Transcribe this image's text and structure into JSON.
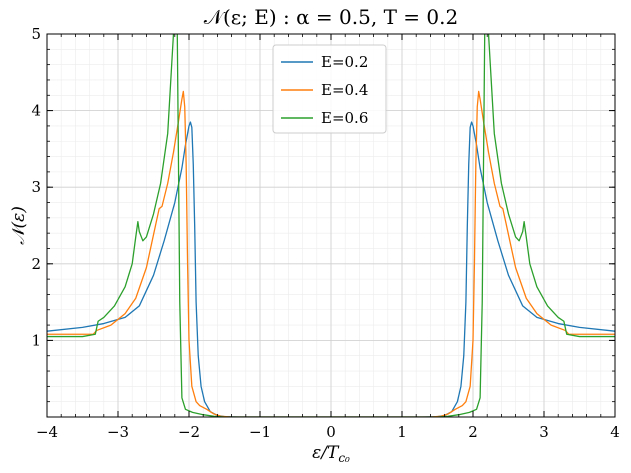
{
  "chart_data": {
    "type": "line",
    "title": "𝒩(ε; E) :  α = 0.5,  T = 0.2",
    "xlabel": "ε/T",
    "xlabel_sub": "c₀",
    "ylabel": "𝒩(ε)",
    "xlim": [
      -4,
      4
    ],
    "ylim": [
      0,
      5
    ],
    "xticks": [
      -4,
      -3,
      -2,
      -1,
      0,
      1,
      2,
      3,
      4
    ],
    "yticks": [
      1,
      2,
      3,
      4,
      5
    ],
    "grid": true,
    "legend_position": "top-center",
    "series": [
      {
        "name": "E=0.2",
        "color": "#1f77b4",
        "points": [
          [
            0.0,
            0.0
          ],
          [
            1.3,
            0.0
          ],
          [
            1.5,
            0.005
          ],
          [
            1.6,
            0.02
          ],
          [
            1.7,
            0.07
          ],
          [
            1.78,
            0.2
          ],
          [
            1.83,
            0.4
          ],
          [
            1.87,
            0.8
          ],
          [
            1.9,
            1.5
          ],
          [
            1.92,
            2.5
          ],
          [
            1.94,
            3.3
          ],
          [
            1.96,
            3.78
          ],
          [
            1.98,
            3.85
          ],
          [
            2.0,
            3.8
          ],
          [
            2.05,
            3.55
          ],
          [
            2.1,
            3.25
          ],
          [
            2.2,
            2.8
          ],
          [
            2.35,
            2.3
          ],
          [
            2.5,
            1.85
          ],
          [
            2.7,
            1.45
          ],
          [
            2.9,
            1.3
          ],
          [
            3.2,
            1.22
          ],
          [
            3.5,
            1.17
          ],
          [
            4.0,
            1.12
          ]
        ]
      },
      {
        "name": "E=0.4",
        "color": "#ff7f0e",
        "points": [
          [
            0.0,
            0.0
          ],
          [
            1.4,
            0.0
          ],
          [
            1.55,
            0.01
          ],
          [
            1.65,
            0.04
          ],
          [
            1.75,
            0.1
          ],
          [
            1.85,
            0.15
          ],
          [
            1.9,
            0.2
          ],
          [
            1.96,
            0.4
          ],
          [
            2.0,
            1.0
          ],
          [
            2.02,
            2.0
          ],
          [
            2.04,
            3.3
          ],
          [
            2.06,
            4.05
          ],
          [
            2.08,
            4.25
          ],
          [
            2.1,
            4.15
          ],
          [
            2.15,
            3.85
          ],
          [
            2.22,
            3.45
          ],
          [
            2.3,
            3.05
          ],
          [
            2.38,
            2.75
          ],
          [
            2.42,
            2.72
          ],
          [
            2.46,
            2.55
          ],
          [
            2.6,
            1.95
          ],
          [
            2.75,
            1.55
          ],
          [
            2.9,
            1.35
          ],
          [
            3.1,
            1.2
          ],
          [
            3.3,
            1.13
          ],
          [
            3.35,
            1.08
          ],
          [
            3.5,
            1.08
          ],
          [
            4.0,
            1.08
          ]
        ]
      },
      {
        "name": "E=0.6",
        "color": "#2ca02c",
        "points": [
          [
            0.0,
            0.0
          ],
          [
            1.5,
            0.0
          ],
          [
            1.65,
            0.01
          ],
          [
            1.8,
            0.03
          ],
          [
            1.95,
            0.06
          ],
          [
            2.05,
            0.1
          ],
          [
            2.1,
            0.25
          ],
          [
            2.13,
            1.5
          ],
          [
            2.15,
            3.5
          ],
          [
            2.17,
            5.5
          ],
          [
            2.2,
            5.3
          ],
          [
            2.25,
            4.5
          ],
          [
            2.3,
            3.7
          ],
          [
            2.4,
            3.05
          ],
          [
            2.5,
            2.65
          ],
          [
            2.6,
            2.35
          ],
          [
            2.65,
            2.3
          ],
          [
            2.7,
            2.42
          ],
          [
            2.72,
            2.55
          ],
          [
            2.75,
            2.35
          ],
          [
            2.8,
            2.0
          ],
          [
            2.9,
            1.7
          ],
          [
            3.05,
            1.45
          ],
          [
            3.2,
            1.3
          ],
          [
            3.28,
            1.25
          ],
          [
            3.32,
            1.08
          ],
          [
            3.5,
            1.05
          ],
          [
            4.0,
            1.05
          ]
        ]
      }
    ]
  }
}
